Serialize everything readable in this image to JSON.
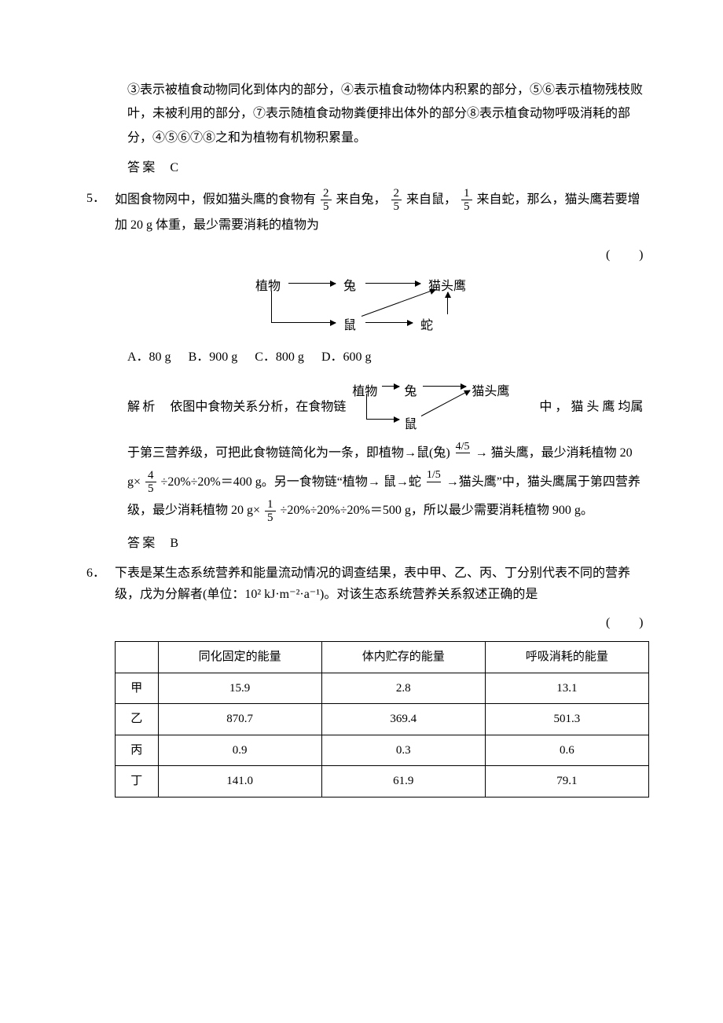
{
  "q4_tail": {
    "para1": "③表示被植食动物同化到体内的部分，④表示植食动物体内积累的部分，⑤⑥表示植物残枝败叶，未被利用的部分，⑦表示随植食动物粪便排出体外的部分⑧表示植食动物呼吸消耗的部分，④⑤⑥⑦⑧之和为植物有机物积累量。",
    "answer_label": "答案",
    "answer_value": "C"
  },
  "q5": {
    "num": "5．",
    "stem_a": "如图食物网中，假如猫头鹰的食物有",
    "frac1_num": "2",
    "frac1_den": "5",
    "stem_b": "来自兔，",
    "frac2_num": "2",
    "frac2_den": "5",
    "stem_c": "来自鼠，",
    "frac3_num": "1",
    "frac3_den": "5",
    "stem_d": "来自蛇，那么，猫头鹰若要增加 20 g 体重，最少需要消耗的植物为",
    "paren": "(　　)",
    "diagram1": {
      "plant": "植物",
      "rabbit": "兔",
      "owl": "猫头鹰",
      "mouse": "鼠",
      "snake": "蛇"
    },
    "options": {
      "a": "A．80 g",
      "b": "B．900 g",
      "c": "C．800 g",
      "d": "D．600 g"
    },
    "analysis_label": "解析",
    "analysis_a": "依图中食物关系分析，在食物链",
    "diagram2": {
      "plant": "植物",
      "rabbit": "兔",
      "owl": "猫头鹰",
      "mouse": "鼠"
    },
    "analysis_b": "中 ， 猫 头 鹰 均属于第三营养级，可把此食物链简化为一条，即植物→鼠(兔)",
    "frac45_top": "4/5",
    "analysis_c": "→ 猫头鹰，最少消耗植物 20 g×",
    "frac4_num": "4",
    "frac4_den": "5",
    "analysis_d": "÷20%÷20%＝400 g。另一食物链“植物→ 鼠→蛇",
    "frac15_top": "1/5",
    "analysis_e": "→猫头鹰”中，猫头鹰属于第四营养级，最少消耗植物 20 g×",
    "frac5_num": "1",
    "frac5_den": "5",
    "analysis_f": "÷20%÷20%÷20%＝500 g，所以最少需要消耗植物 900 g。",
    "answer_label": "答案",
    "answer_value": "B"
  },
  "q6": {
    "num": "6．",
    "stem": "下表是某生态系统营养和能量流动情况的调查结果，表中甲、乙、丙、丁分别代表不同的营养级，戊为分解者(单位：10² kJ·m⁻²·a⁻¹)。对该生态系统营养关系叙述正确的是",
    "paren": "(　　)",
    "table": {
      "headers": [
        "",
        "同化固定的能量",
        "体内贮存的能量",
        "呼吸消耗的能量"
      ],
      "rows": [
        [
          "甲",
          "15.9",
          "2.8",
          "13.1"
        ],
        [
          "乙",
          "870.7",
          "369.4",
          "501.3"
        ],
        [
          "丙",
          "0.9",
          "0.3",
          "0.6"
        ],
        [
          "丁",
          "141.0",
          "61.9",
          "79.1"
        ]
      ]
    }
  }
}
